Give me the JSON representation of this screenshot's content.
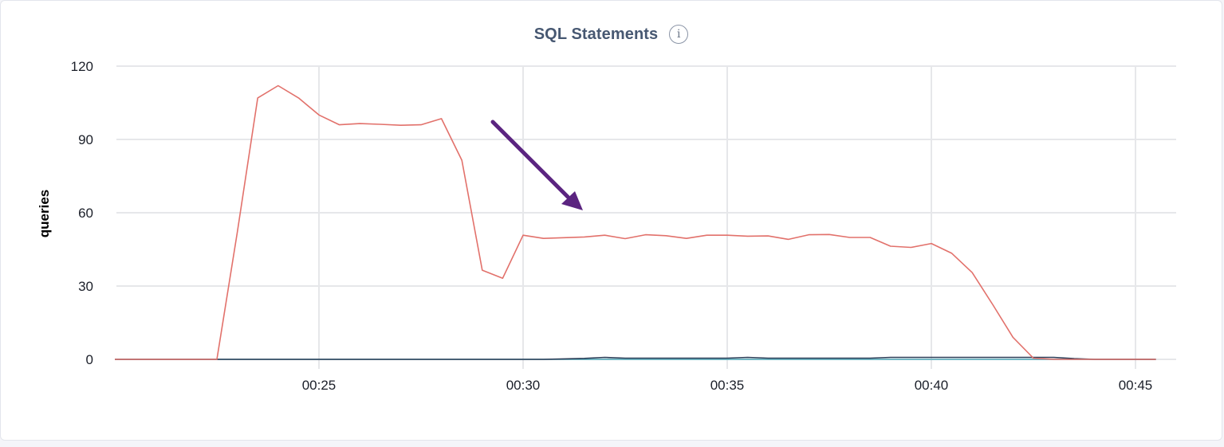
{
  "panel": {
    "title": "SQL Statements",
    "info_icon": "info-icon",
    "info_glyph": "i"
  },
  "chart_data": {
    "type": "line",
    "title": "SQL Statements",
    "xlabel": "",
    "ylabel": "queries",
    "ylim": [
      0,
      120
    ],
    "yticks": [
      0,
      30,
      60,
      90,
      120
    ],
    "xlim": [
      "00:20",
      "00:45:30"
    ],
    "xticks": [
      "00:25",
      "00:30",
      "00:35",
      "00:40",
      "00:45"
    ],
    "grid": true,
    "legend": "none",
    "annotation": {
      "type": "arrow",
      "color": "#5b2480",
      "points_to": "series level around 00:31–00:32"
    },
    "series": [
      {
        "color": "#e2716b",
        "points": [
          [
            "00:20",
            0
          ],
          [
            "00:20:30",
            0
          ],
          [
            "00:21",
            0
          ],
          [
            "00:21:30",
            0
          ],
          [
            "00:22",
            0
          ],
          [
            "00:22:30",
            0
          ],
          [
            "00:23",
            52
          ],
          [
            "00:23:30",
            107
          ],
          [
            "00:24",
            112
          ],
          [
            "00:24:30",
            107
          ],
          [
            "00:25",
            100
          ],
          [
            "00:25:30",
            96
          ],
          [
            "00:26",
            96.5
          ],
          [
            "00:26:30",
            96.2
          ],
          [
            "00:27",
            95.8
          ],
          [
            "00:27:30",
            96
          ],
          [
            "00:28",
            98.5
          ],
          [
            "00:28:30",
            81.5
          ],
          [
            "00:29",
            36.5
          ],
          [
            "00:29:30",
            33.2
          ],
          [
            "00:30",
            50.8
          ],
          [
            "00:30:30",
            49.5
          ],
          [
            "00:31",
            49.8
          ],
          [
            "00:31:30",
            50.1
          ],
          [
            "00:32",
            50.8
          ],
          [
            "00:32:30",
            49.4
          ],
          [
            "00:33",
            51
          ],
          [
            "00:33:30",
            50.6
          ],
          [
            "00:34",
            49.5
          ],
          [
            "00:34:30",
            50.8
          ],
          [
            "00:35",
            50.8
          ],
          [
            "00:35:30",
            50.4
          ],
          [
            "00:36",
            50.5
          ],
          [
            "00:36:30",
            49.1
          ],
          [
            "00:37",
            51
          ],
          [
            "00:37:30",
            51.1
          ],
          [
            "00:38",
            49.9
          ],
          [
            "00:38:30",
            49.9
          ],
          [
            "00:39",
            46.3
          ],
          [
            "00:39:30",
            45.8
          ],
          [
            "00:40",
            47.4
          ],
          [
            "00:40:30",
            43.4
          ],
          [
            "00:41",
            35.5
          ],
          [
            "00:41:30",
            22.5
          ],
          [
            "00:42",
            9
          ],
          [
            "00:42:30",
            0.5
          ],
          [
            "00:43",
            0
          ],
          [
            "00:43:30",
            0
          ],
          [
            "00:44",
            0
          ],
          [
            "00:44:30",
            0
          ],
          [
            "00:45",
            0
          ],
          [
            "00:45:30",
            0
          ]
        ]
      },
      {
        "color": "#2c3e58",
        "points": [
          [
            "00:20",
            0
          ],
          [
            "00:30",
            0
          ],
          [
            "00:30:30",
            0
          ],
          [
            "00:31",
            0.2
          ],
          [
            "00:31:30",
            0.4
          ],
          [
            "00:32",
            0.8
          ],
          [
            "00:32:30",
            0.5
          ],
          [
            "00:33",
            0.5
          ],
          [
            "00:34",
            0.5
          ],
          [
            "00:35",
            0.5
          ],
          [
            "00:35:30",
            0.8
          ],
          [
            "00:36",
            0.5
          ],
          [
            "00:37",
            0.5
          ],
          [
            "00:38",
            0.5
          ],
          [
            "00:38:30",
            0.5
          ],
          [
            "00:39",
            0.8
          ],
          [
            "00:40",
            0.8
          ],
          [
            "00:41",
            0.8
          ],
          [
            "00:42",
            0.8
          ],
          [
            "00:42:30",
            0.8
          ],
          [
            "00:43",
            0.8
          ],
          [
            "00:43:30",
            0.3
          ],
          [
            "00:44",
            0
          ],
          [
            "00:45:30",
            0
          ]
        ]
      },
      {
        "color": "#4fa8b8",
        "points": [
          [
            "00:20",
            0
          ],
          [
            "00:45:30",
            0
          ]
        ]
      }
    ]
  }
}
